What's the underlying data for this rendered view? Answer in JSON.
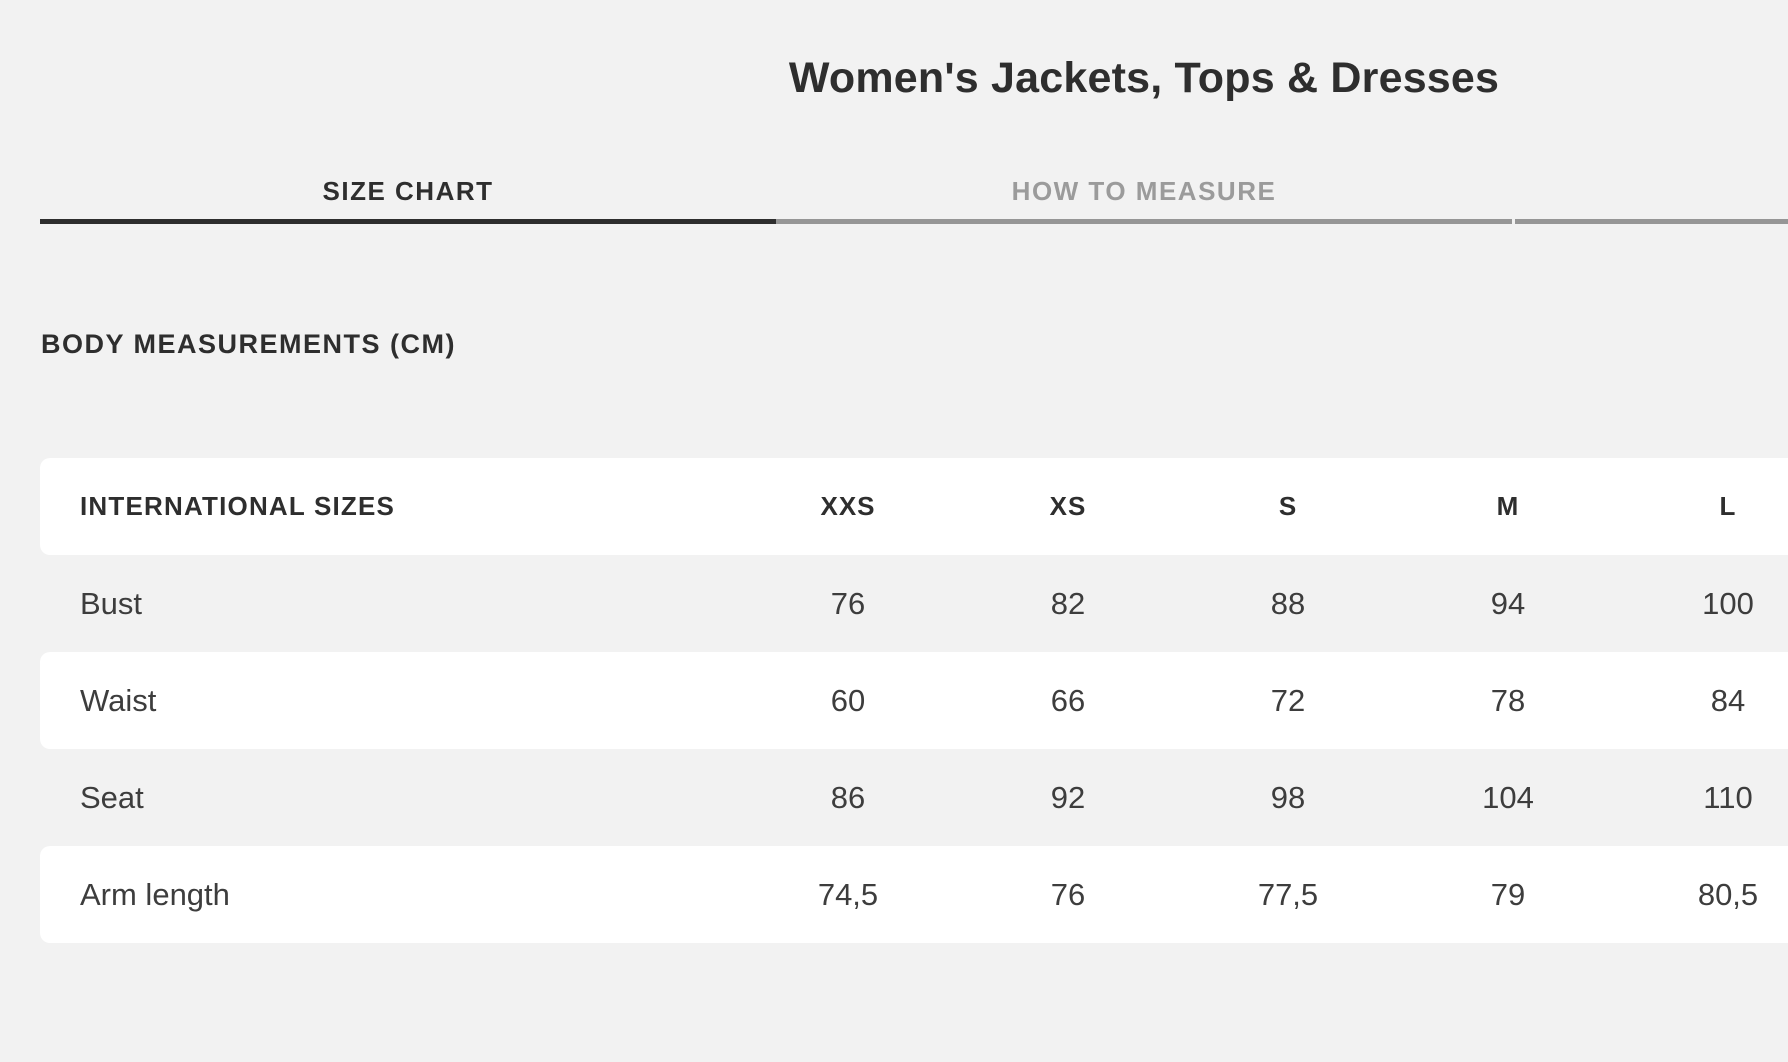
{
  "page": {
    "title": "Women's Jackets, Tops & Dresses"
  },
  "tabs": [
    {
      "label": "SIZE CHART",
      "active": true
    },
    {
      "label": "HOW TO MEASURE",
      "active": false
    }
  ],
  "section_heading": "BODY MEASUREMENTS (CM)",
  "table": {
    "header": [
      "INTERNATIONAL SIZES",
      "XXS",
      "XS",
      "S",
      "M",
      "L"
    ],
    "rows": [
      {
        "label": "Bust",
        "values": [
          "76",
          "82",
          "88",
          "94",
          "100"
        ]
      },
      {
        "label": "Waist",
        "values": [
          "60",
          "66",
          "72",
          "78",
          "84"
        ]
      },
      {
        "label": "Seat",
        "values": [
          "86",
          "92",
          "98",
          "104",
          "110"
        ]
      },
      {
        "label": "Arm length",
        "values": [
          "74,5",
          "76",
          "77,5",
          "79",
          "80,5"
        ]
      }
    ]
  },
  "colors": {
    "page_background": "#f2f2f2",
    "row_white": "#ffffff",
    "text_dark": "#2e2e2e",
    "text_body": "#3d3d3d",
    "tab_inactive_text": "#9b9b9b",
    "underline_active": "#2e2e2e",
    "underline_inactive": "#969696"
  }
}
